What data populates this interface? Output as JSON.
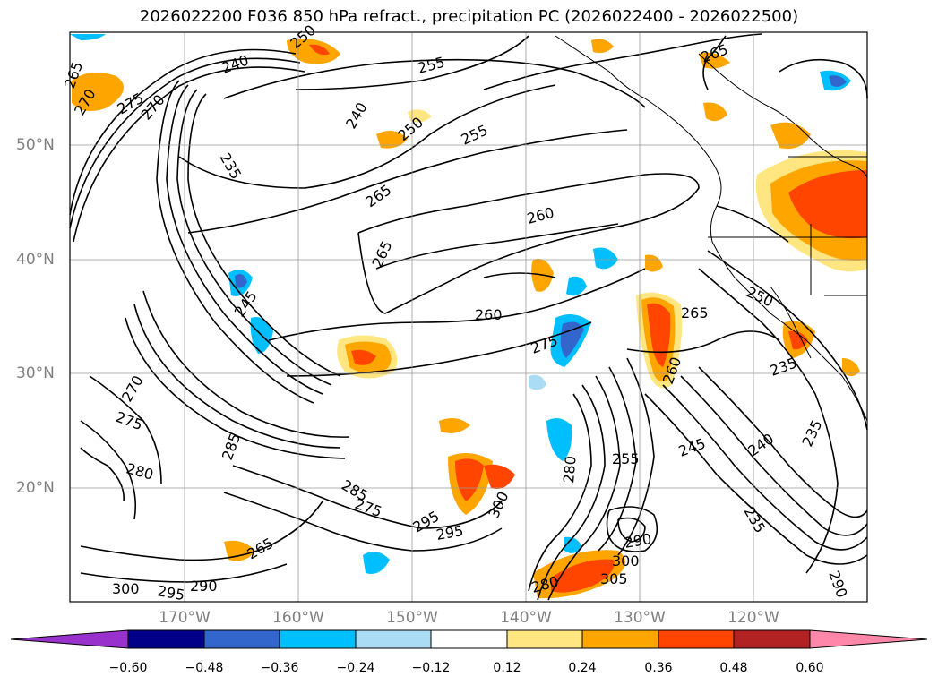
{
  "title": "2026022200 F036 850 hPa refract., precipitation PC (2026022400 - 2026022500)",
  "lat_labels": [
    "50°N",
    "40°N",
    "30°N",
    "20°N"
  ],
  "lon_labels": [
    "170°W",
    "160°W",
    "150°W",
    "140°W",
    "130°W",
    "120°W"
  ],
  "colorbar": {
    "ticks": [
      "−0.60",
      "−0.48",
      "−0.36",
      "−0.24",
      "−0.12",
      "0.12",
      "0.24",
      "0.36",
      "0.48",
      "0.60"
    ],
    "colors": [
      "#9932cc",
      "#000088",
      "#3366cc",
      "#00bfff",
      "#aaddf5",
      "#ffffff",
      "#ffe680",
      "#ffa500",
      "#ff4500",
      "#b22222",
      "#ff88aa"
    ]
  },
  "contour_labels": [
    "265",
    "270",
    "275",
    "270",
    "240",
    "235",
    "250",
    "240",
    "245",
    "255",
    "250",
    "255",
    "265",
    "260",
    "265",
    "260",
    "275",
    "265",
    "260",
    "250",
    "235",
    "235",
    "240",
    "245",
    "255",
    "275",
    "270",
    "280",
    "285",
    "285",
    "275",
    "295",
    "295",
    "300",
    "265",
    "290",
    "280",
    "300",
    "295",
    "290",
    "300",
    "305",
    "280",
    "290",
    "235",
    "265"
  ]
}
